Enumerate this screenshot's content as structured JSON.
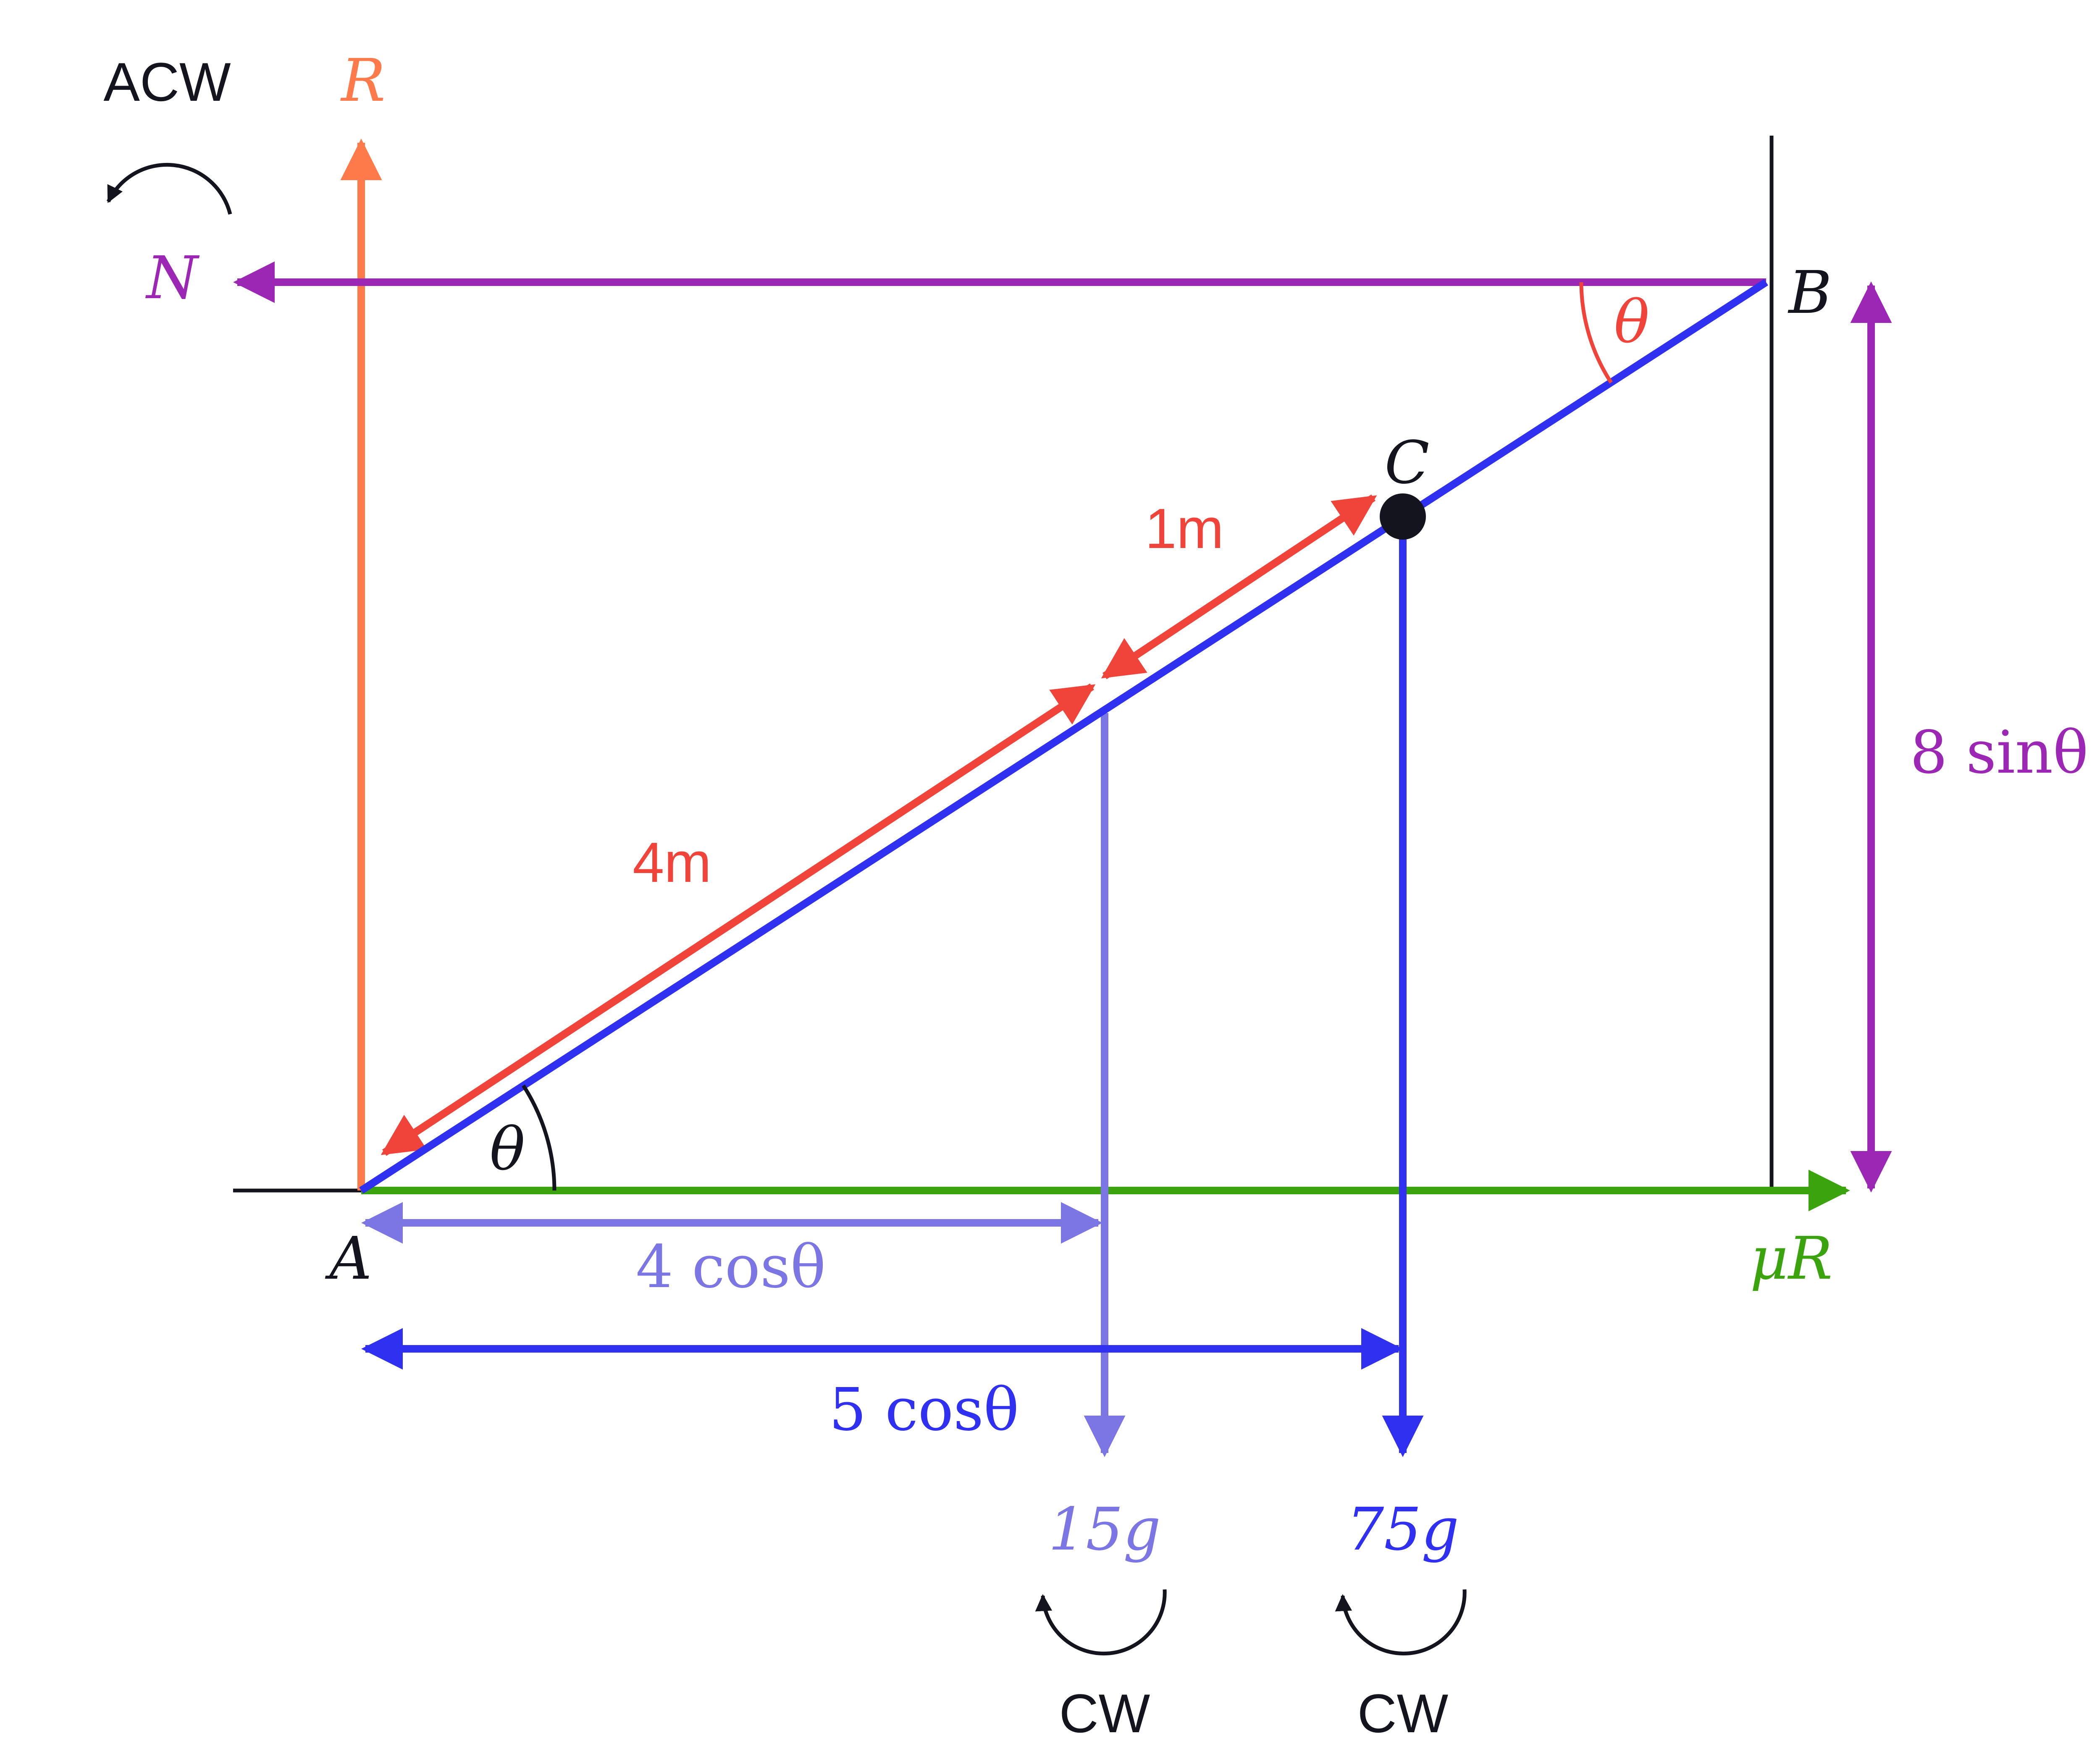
{
  "colors": {
    "black": "#14141f",
    "orange": "#ff7a4a",
    "purple": "#9b27b4",
    "blue": "#3030f0",
    "light_blue": "#7b76e3",
    "red": "#f0443a",
    "green": "#3aa30e"
  },
  "labels": {
    "acw": "ACW",
    "cw_left": "CW",
    "cw_right": "CW",
    "R": "R",
    "N": "N",
    "B": "B",
    "C": "C",
    "A": "A",
    "mu_R": "μR",
    "theta_top": "θ",
    "theta_bottom": "θ",
    "one_m": "1m",
    "four_m": "4m",
    "four_cos": "4 cosθ",
    "five_cos": "5 cosθ",
    "eight_sin": "8 sinθ",
    "fifteen_g": "15g",
    "seventy_five_g": "75g"
  }
}
